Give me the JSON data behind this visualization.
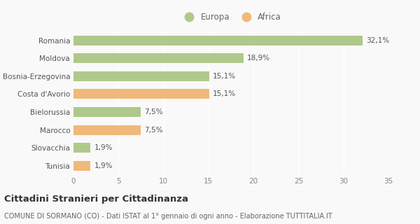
{
  "categories": [
    "Romania",
    "Moldova",
    "Bosnia-Erzegovina",
    "Costa d'Avorio",
    "Bielorussia",
    "Marocco",
    "Slovacchia",
    "Tunisia"
  ],
  "values": [
    32.1,
    18.9,
    15.1,
    15.1,
    7.5,
    7.5,
    1.9,
    1.9
  ],
  "colors": [
    "#aec98a",
    "#aec98a",
    "#aec98a",
    "#f0b97a",
    "#aec98a",
    "#f0b97a",
    "#aec98a",
    "#f0b97a"
  ],
  "labels": [
    "32,1%",
    "18,9%",
    "15,1%",
    "15,1%",
    "7,5%",
    "7,5%",
    "1,9%",
    "1,9%"
  ],
  "legend_labels": [
    "Europa",
    "Africa"
  ],
  "legend_colors": [
    "#aec98a",
    "#f0b97a"
  ],
  "xlim": [
    0,
    35
  ],
  "xticks": [
    0,
    5,
    10,
    15,
    20,
    25,
    30,
    35
  ],
  "title": "Cittadini Stranieri per Cittadinanza",
  "subtitle": "COMUNE DI SORMANO (CO) - Dati ISTAT al 1° gennaio di ogni anno - Elaborazione TUTTITALIA.IT",
  "background_color": "#f9f9f9",
  "bar_height": 0.55,
  "title_fontsize": 9.5,
  "subtitle_fontsize": 7.0,
  "tick_fontsize": 7.5,
  "label_fontsize": 7.5,
  "legend_fontsize": 8.5
}
